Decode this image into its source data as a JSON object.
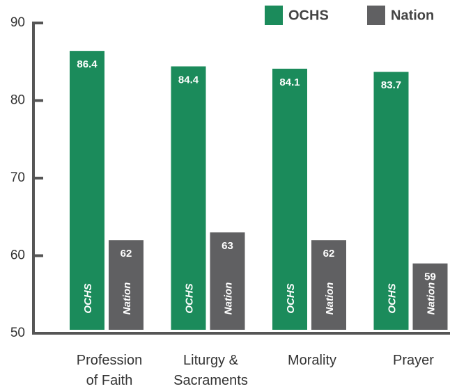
{
  "chart_data": {
    "type": "bar",
    "categories": [
      "Profession of Faith",
      "Liturgy & Sacraments",
      "Morality",
      "Prayer"
    ],
    "series": [
      {
        "name": "OCHS",
        "color": "#1b8b5b",
        "values": [
          86.4,
          84.4,
          84.1,
          83.7
        ]
      },
      {
        "name": "Nation",
        "color": "#606062",
        "values": [
          62,
          63,
          62,
          59
        ]
      }
    ],
    "ylim": [
      50,
      90
    ],
    "yticks": [
      50,
      60,
      70,
      80,
      90
    ],
    "legend": "top-right"
  }
}
